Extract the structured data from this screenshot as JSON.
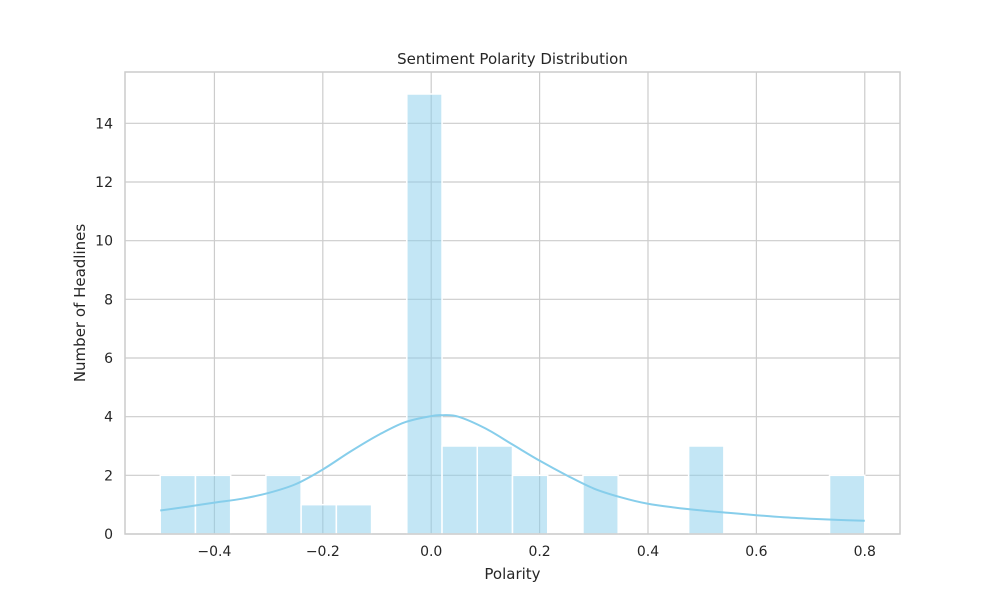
{
  "chart_data": {
    "type": "bar",
    "subtype": "histogram-with-kde",
    "title": "Sentiment Polarity Distribution",
    "xlabel": "Polarity",
    "ylabel": "Number of Headlines",
    "xlim": [
      -0.565,
      0.865
    ],
    "ylim": [
      0,
      15.75
    ],
    "xticks": [
      -0.4,
      -0.2,
      0.0,
      0.2,
      0.4,
      0.6,
      0.8
    ],
    "xtick_labels": [
      "−0.4",
      "−0.2",
      "0.0",
      "0.2",
      "0.4",
      "0.6",
      "0.8"
    ],
    "yticks": [
      0,
      2,
      4,
      6,
      8,
      10,
      12,
      14
    ],
    "ytick_labels": [
      "0",
      "2",
      "4",
      "6",
      "8",
      "10",
      "12",
      "14"
    ],
    "grid": true,
    "bin_edges": [
      -0.5,
      -0.435,
      -0.37,
      -0.305,
      -0.24,
      -0.175,
      -0.11,
      -0.045,
      0.02,
      0.085,
      0.15,
      0.215,
      0.28,
      0.345,
      0.41,
      0.475,
      0.54,
      0.605,
      0.67,
      0.735,
      0.8
    ],
    "counts": [
      2,
      2,
      0,
      2,
      1,
      1,
      0,
      15,
      3,
      3,
      2,
      0,
      2,
      0,
      0,
      3,
      0,
      0,
      0,
      2
    ],
    "kde": {
      "x": [
        -0.5,
        -0.45,
        -0.4,
        -0.35,
        -0.3,
        -0.25,
        -0.2,
        -0.15,
        -0.1,
        -0.05,
        0.0,
        0.02,
        0.05,
        0.1,
        0.15,
        0.2,
        0.25,
        0.3,
        0.35,
        0.4,
        0.45,
        0.5,
        0.55,
        0.6,
        0.65,
        0.7,
        0.75,
        0.8
      ],
      "y": [
        0.8,
        0.93,
        1.07,
        1.2,
        1.4,
        1.7,
        2.2,
        2.8,
        3.35,
        3.8,
        4.02,
        4.05,
        4.0,
        3.6,
        3.05,
        2.5,
        2.0,
        1.55,
        1.25,
        1.03,
        0.9,
        0.8,
        0.72,
        0.64,
        0.57,
        0.52,
        0.48,
        0.45
      ]
    },
    "colors": {
      "bar_fill": "#87ceeb",
      "bar_fill_opacity": 0.5,
      "bar_edge": "#ffffff",
      "kde_line": "#87ceeb",
      "grid": "#cccccc",
      "axes_edge": "#cccccc"
    }
  }
}
